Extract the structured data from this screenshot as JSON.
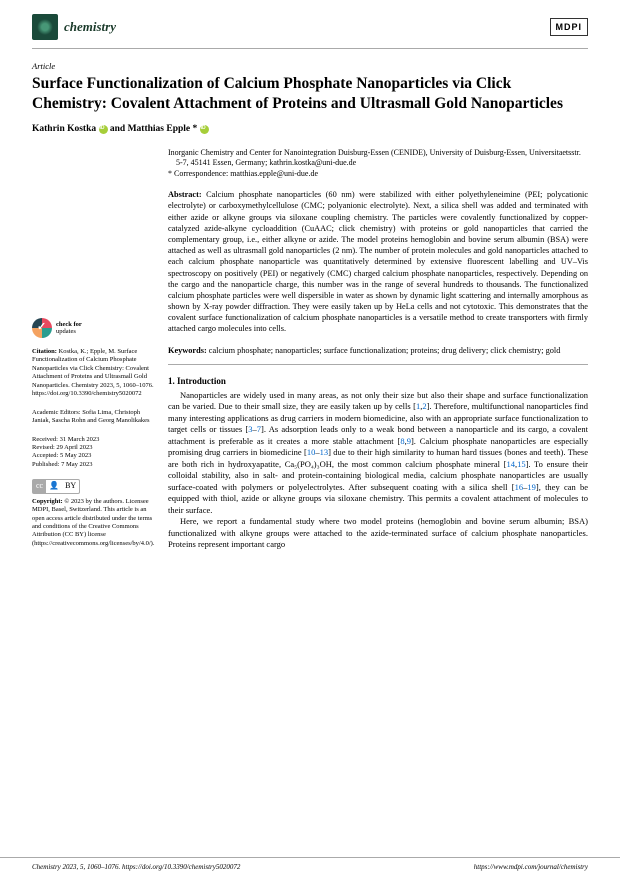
{
  "header": {
    "journal_name": "chemistry",
    "publisher_logo": "MDPI"
  },
  "article": {
    "type": "Article",
    "title": "Surface Functionalization of Calcium Phosphate Nanoparticles via Click Chemistry: Covalent Attachment of Proteins and Ultrasmall Gold Nanoparticles",
    "author1": "Kathrin Kostka",
    "author_and": " and ",
    "author2": "Matthias Epple *",
    "affiliation": "Inorganic Chemistry and Center for Nanointegration Duisburg-Essen (CENIDE), University of Duisburg-Essen, Universitaetsstr. 5-7, 45141 Essen, Germany; kathrin.kostka@uni-due.de",
    "correspondence": "* Correspondence: matthias.epple@uni-due.de",
    "abstract_label": "Abstract:",
    "abstract": " Calcium phosphate nanoparticles (60 nm) were stabilized with either polyethyleneimine (PEI; polycationic electrolyte) or carboxymethylcellulose (CMC; polyanionic electrolyte). Next, a silica shell was added and terminated with either azide or alkyne groups via siloxane coupling chemistry. The particles were covalently functionalized by copper-catalyzed azide-alkyne cycloaddition (CuAAC; click chemistry) with proteins or gold nanoparticles that carried the complementary group, i.e., either alkyne or azide. The model proteins hemoglobin and bovine serum albumin (BSA) were attached as well as ultrasmall gold nanoparticles (2 nm). The number of protein molecules and gold nanoparticles attached to each calcium phosphate nanoparticle was quantitatively determined by extensive fluorescent labelling and UV–Vis spectroscopy on positively (PEI) or negatively (CMC) charged calcium phosphate nanoparticles, respectively. Depending on the cargo and the nanoparticle charge, this number was in the range of several hundreds to thousands. The functionalized calcium phosphate particles were well dispersible in water as shown by dynamic light scattering and internally amorphous as shown by X-ray powder diffraction. They were easily taken up by HeLa cells and not cytotoxic. This demonstrates that the covalent surface functionalization of calcium phosphate nanoparticles is a versatile method to create transporters with firmly attached cargo molecules into cells.",
    "keywords_label": "Keywords:",
    "keywords": " calcium phosphate; nanoparticles; surface functionalization; proteins; drug delivery; click chemistry; gold"
  },
  "sidebar": {
    "check_bold": "check for",
    "check_text": "updates",
    "citation_label": "Citation:",
    "citation": " Kostka, K.; Epple, M. Surface Functionalization of Calcium Phosphate Nanoparticles via Click Chemistry: Covalent Attachment of Proteins and Ultrasmall Gold Nanoparticles. Chemistry 2023, 5, 1060–1076. https://doi.org/10.3390/chemistry5020072",
    "editors_label": "Academic Editors: ",
    "editors": "Sofia Lima, Christoph Janiak, Sascha Rohn and Georg Manolikakes",
    "received": "Received: 31 March 2023",
    "revised": "Revised: 29 April 2023",
    "accepted": "Accepted: 5 May 2023",
    "published": "Published: 7 May 2023",
    "cc_icon": "cc",
    "by_icon": "BY",
    "copyright_label": "Copyright:",
    "copyright": " © 2023 by the authors. Licensee MDPI, Basel, Switzerland. This article is an open access article distributed under the terms and conditions of the Creative Commons Attribution (CC BY) license (https://creativecommons.org/licenses/by/4.0/)."
  },
  "section": {
    "intro_title": "1. Introduction",
    "intro_p1a": "Nanoparticles are widely used in many areas, as not only their size but also their shape and surface functionalization can be varied. Due to their small size, they are easily taken up by cells [",
    "intro_ref1": "1",
    "intro_comma1": ",",
    "intro_ref2": "2",
    "intro_p1b": "]. Therefore, multifunctional nanoparticles find many interesting applications as drug carriers in modern biomedicine, also with an appropriate surface functionalization to target cells or tissues [",
    "intro_ref3": "3",
    "intro_dash1": "–",
    "intro_ref7": "7",
    "intro_p1c": "]. As adsorption leads only to a weak bond between a nanoparticle and its cargo, a covalent attachment is preferable as it creates a more stable attachment [",
    "intro_ref8": "8",
    "intro_comma2": ",",
    "intro_ref9": "9",
    "intro_p1d": "]. Calcium phosphate nanoparticles are especially promising drug carriers in biomedicine [",
    "intro_ref10": "10",
    "intro_dash2": "–",
    "intro_ref13": "13",
    "intro_p1e": "] due to their high similarity to human hard tissues (bones and teeth). These are both rich in hydroxyapatite, Ca₅(PO₄)₃OH, the most common calcium phosphate mineral [",
    "intro_ref14": "14",
    "intro_comma3": ",",
    "intro_ref15": "15",
    "intro_p1f": "]. To ensure their colloidal stability, also in salt- and protein-containing biological media, calcium phosphate nanoparticles are usually surface-coated with polymers or polyelectrolytes. After subsequent coating with a silica shell [",
    "intro_ref16": "16",
    "intro_dash3": "–",
    "intro_ref19": "19",
    "intro_p1g": "], they can be equipped with thiol, azide or alkyne groups via siloxane chemistry. This permits a covalent attachment of molecules to their surface.",
    "intro_p2": "Here, we report a fundamental study where two model proteins (hemoglobin and bovine serum albumin; BSA) functionalized with alkyne groups were attached to the azide-terminated surface of calcium phosphate nanoparticles. Proteins represent important cargo"
  },
  "footer": {
    "left": "Chemistry 2023, 5, 1060–1076. https://doi.org/10.3390/chemistry5020072",
    "right": "https://www.mdpi.com/journal/chemistry"
  }
}
